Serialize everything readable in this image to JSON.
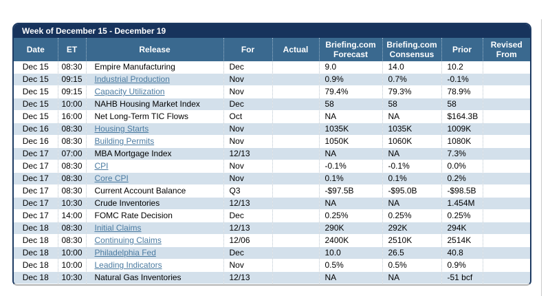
{
  "calendar": {
    "title": "Week of December 15 - December 19",
    "colors": {
      "title_bar": "#17335c",
      "header_bar": "#3a698f",
      "row_alt": "#d3e0eb",
      "link": "#4a7aa0",
      "frame_border": "#1d3a62"
    },
    "columns": [
      {
        "key": "date",
        "label": "Date"
      },
      {
        "key": "et",
        "label": "ET"
      },
      {
        "key": "release",
        "label": "Release"
      },
      {
        "key": "for",
        "label": "For"
      },
      {
        "key": "actual",
        "label": "Actual"
      },
      {
        "key": "forecast",
        "label": "Briefing.com Forecast"
      },
      {
        "key": "consensus",
        "label": "Briefing.com Consensus"
      },
      {
        "key": "prior",
        "label": "Prior"
      },
      {
        "key": "revised",
        "label": "Revised From"
      }
    ],
    "rows": [
      {
        "date": "Dec 15",
        "et": "08:30",
        "release": "Empire Manufacturing",
        "link": false,
        "for": "Dec",
        "actual": "",
        "forecast": "9.0",
        "consensus": "14.0",
        "prior": "10.2",
        "revised": ""
      },
      {
        "date": "Dec 15",
        "et": "09:15",
        "release": "Industrial Production",
        "link": true,
        "for": "Nov",
        "actual": "",
        "forecast": "0.9%",
        "consensus": "0.7%",
        "prior": "-0.1%",
        "revised": ""
      },
      {
        "date": "Dec 15",
        "et": "09:15",
        "release": "Capacity Utilization",
        "link": true,
        "for": "Nov",
        "actual": "",
        "forecast": "79.4%",
        "consensus": "79.3%",
        "prior": "78.9%",
        "revised": ""
      },
      {
        "date": "Dec 15",
        "et": "10:00",
        "release": "NAHB Housing Market Index",
        "link": false,
        "for": "Dec",
        "actual": "",
        "forecast": "58",
        "consensus": "58",
        "prior": "58",
        "revised": ""
      },
      {
        "date": "Dec 15",
        "et": "16:00",
        "release": "Net Long-Term TIC Flows",
        "link": false,
        "for": "Oct",
        "actual": "",
        "forecast": "NA",
        "consensus": "NA",
        "prior": "$164.3B",
        "revised": ""
      },
      {
        "date": "Dec 16",
        "et": "08:30",
        "release": "Housing Starts",
        "link": true,
        "for": "Nov",
        "actual": "",
        "forecast": "1035K",
        "consensus": "1035K",
        "prior": "1009K",
        "revised": ""
      },
      {
        "date": "Dec 16",
        "et": "08:30",
        "release": "Building Permits",
        "link": true,
        "for": "Nov",
        "actual": "",
        "forecast": "1050K",
        "consensus": "1060K",
        "prior": "1080K",
        "revised": ""
      },
      {
        "date": "Dec 17",
        "et": "07:00",
        "release": "MBA Mortgage Index",
        "link": false,
        "for": "12/13",
        "actual": "",
        "forecast": "NA",
        "consensus": "NA",
        "prior": "7.3%",
        "revised": ""
      },
      {
        "date": "Dec 17",
        "et": "08:30",
        "release": "CPI",
        "link": true,
        "for": "Nov",
        "actual": "",
        "forecast": "-0.1%",
        "consensus": "-0.1%",
        "prior": "0.0%",
        "revised": ""
      },
      {
        "date": "Dec 17",
        "et": "08:30",
        "release": "Core CPI",
        "link": true,
        "for": "Nov",
        "actual": "",
        "forecast": "0.1%",
        "consensus": "0.1%",
        "prior": "0.2%",
        "revised": ""
      },
      {
        "date": "Dec 17",
        "et": "08:30",
        "release": "Current Account Balance",
        "link": false,
        "for": "Q3",
        "actual": "",
        "forecast": "-$97.5B",
        "consensus": "-$95.0B",
        "prior": "-$98.5B",
        "revised": ""
      },
      {
        "date": "Dec 17",
        "et": "10:30",
        "release": "Crude Inventories",
        "link": false,
        "for": "12/13",
        "actual": "",
        "forecast": "NA",
        "consensus": "NA",
        "prior": "1.454M",
        "revised": ""
      },
      {
        "date": "Dec 17",
        "et": "14:00",
        "release": "FOMC Rate Decision",
        "link": false,
        "for": "Dec",
        "actual": "",
        "forecast": "0.25%",
        "consensus": "0.25%",
        "prior": "0.25%",
        "revised": ""
      },
      {
        "date": "Dec 18",
        "et": "08:30",
        "release": "Initial Claims",
        "link": true,
        "for": "12/13",
        "actual": "",
        "forecast": "290K",
        "consensus": "292K",
        "prior": "294K",
        "revised": ""
      },
      {
        "date": "Dec 18",
        "et": "08:30",
        "release": "Continuing Claims",
        "link": true,
        "for": "12/06",
        "actual": "",
        "forecast": "2400K",
        "consensus": "2510K",
        "prior": "2514K",
        "revised": ""
      },
      {
        "date": "Dec 18",
        "et": "10:00",
        "release": "Philadelphia Fed",
        "link": true,
        "for": "Dec",
        "actual": "",
        "forecast": "10.0",
        "consensus": "26.5",
        "prior": "40.8",
        "revised": ""
      },
      {
        "date": "Dec 18",
        "et": "10:00",
        "release": "Leading Indicators",
        "link": true,
        "for": "Nov",
        "actual": "",
        "forecast": "0.5%",
        "consensus": "0.5%",
        "prior": "0.9%",
        "revised": ""
      },
      {
        "date": "Dec 18",
        "et": "10:30",
        "release": "Natural Gas Inventories",
        "link": false,
        "for": "12/13",
        "actual": "",
        "forecast": "NA",
        "consensus": "NA",
        "prior": "-51 bcf",
        "revised": ""
      }
    ]
  }
}
